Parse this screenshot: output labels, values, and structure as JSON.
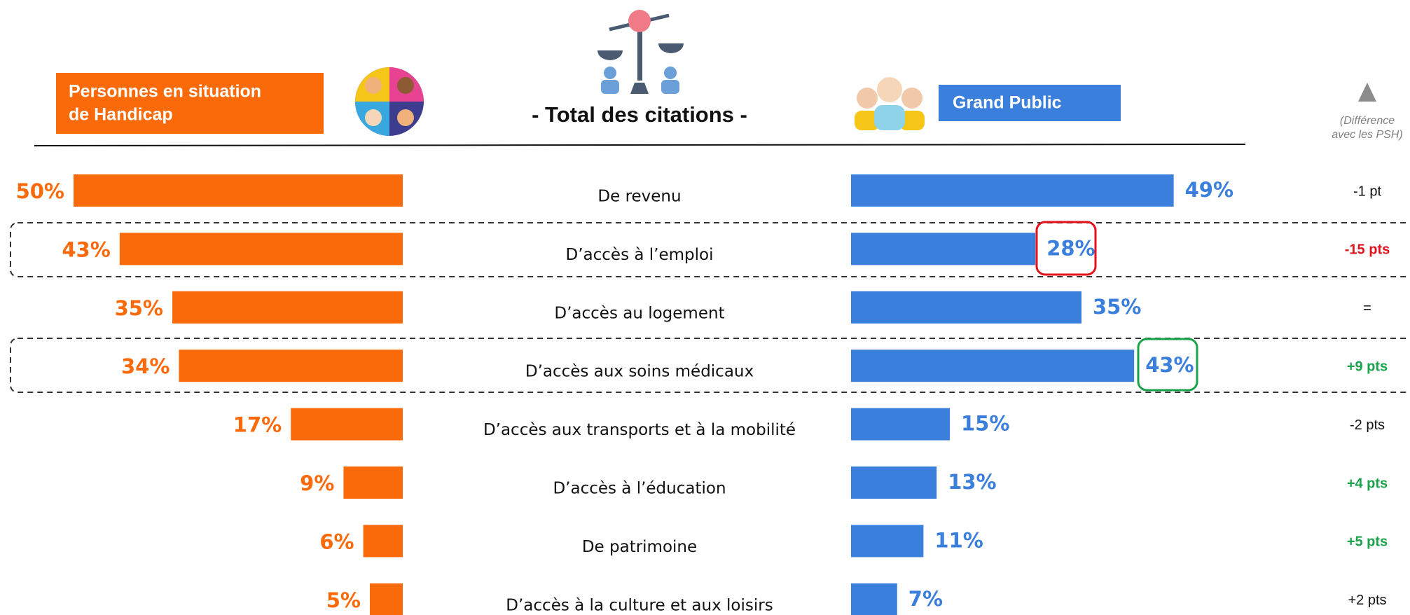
{
  "chart_data": {
    "type": "butterfly",
    "title": "- Total des citations -",
    "categories": [
      "De revenu",
      "D’accès à l’emploi",
      "D’accès au logement",
      "D’accès aux soins médicaux",
      "D’accès aux transports et à la mobilité",
      "D’accès à l’éducation",
      "De patrimoine",
      "D’accès à la culture et aux loisirs"
    ],
    "series": [
      {
        "name": [
          "Personnes en situation",
          "de Handicap"
        ],
        "color": "#fb6a0a",
        "values": [
          50,
          43,
          35,
          34,
          17,
          9,
          6,
          5
        ],
        "value_labels": [
          "50%",
          "43%",
          "35%",
          "34%",
          "17%",
          "9%",
          "6%",
          "5%"
        ]
      },
      {
        "name": "Grand Public",
        "color": "#3a7fdb",
        "values": [
          49,
          28,
          35,
          43,
          15,
          13,
          11,
          7
        ],
        "value_labels": [
          "49%",
          "28%",
          "35%",
          "43%",
          "15%",
          "13%",
          "11%",
          "7%"
        ]
      }
    ],
    "difference_note": [
      "(Différence",
      "avec les PSH)"
    ],
    "difference_labels": [
      "-1 pt",
      "-15 pts",
      "=",
      "+9 pts",
      "-2 pts",
      "+4 pts",
      "+5 pts",
      "+2 pts"
    ],
    "difference_colors": [
      "#111111",
      "#e3121b",
      "#111111",
      "#1aa34a",
      "#111111",
      "#1aa34a",
      "#1aa34a",
      "#111111"
    ]
  }
}
